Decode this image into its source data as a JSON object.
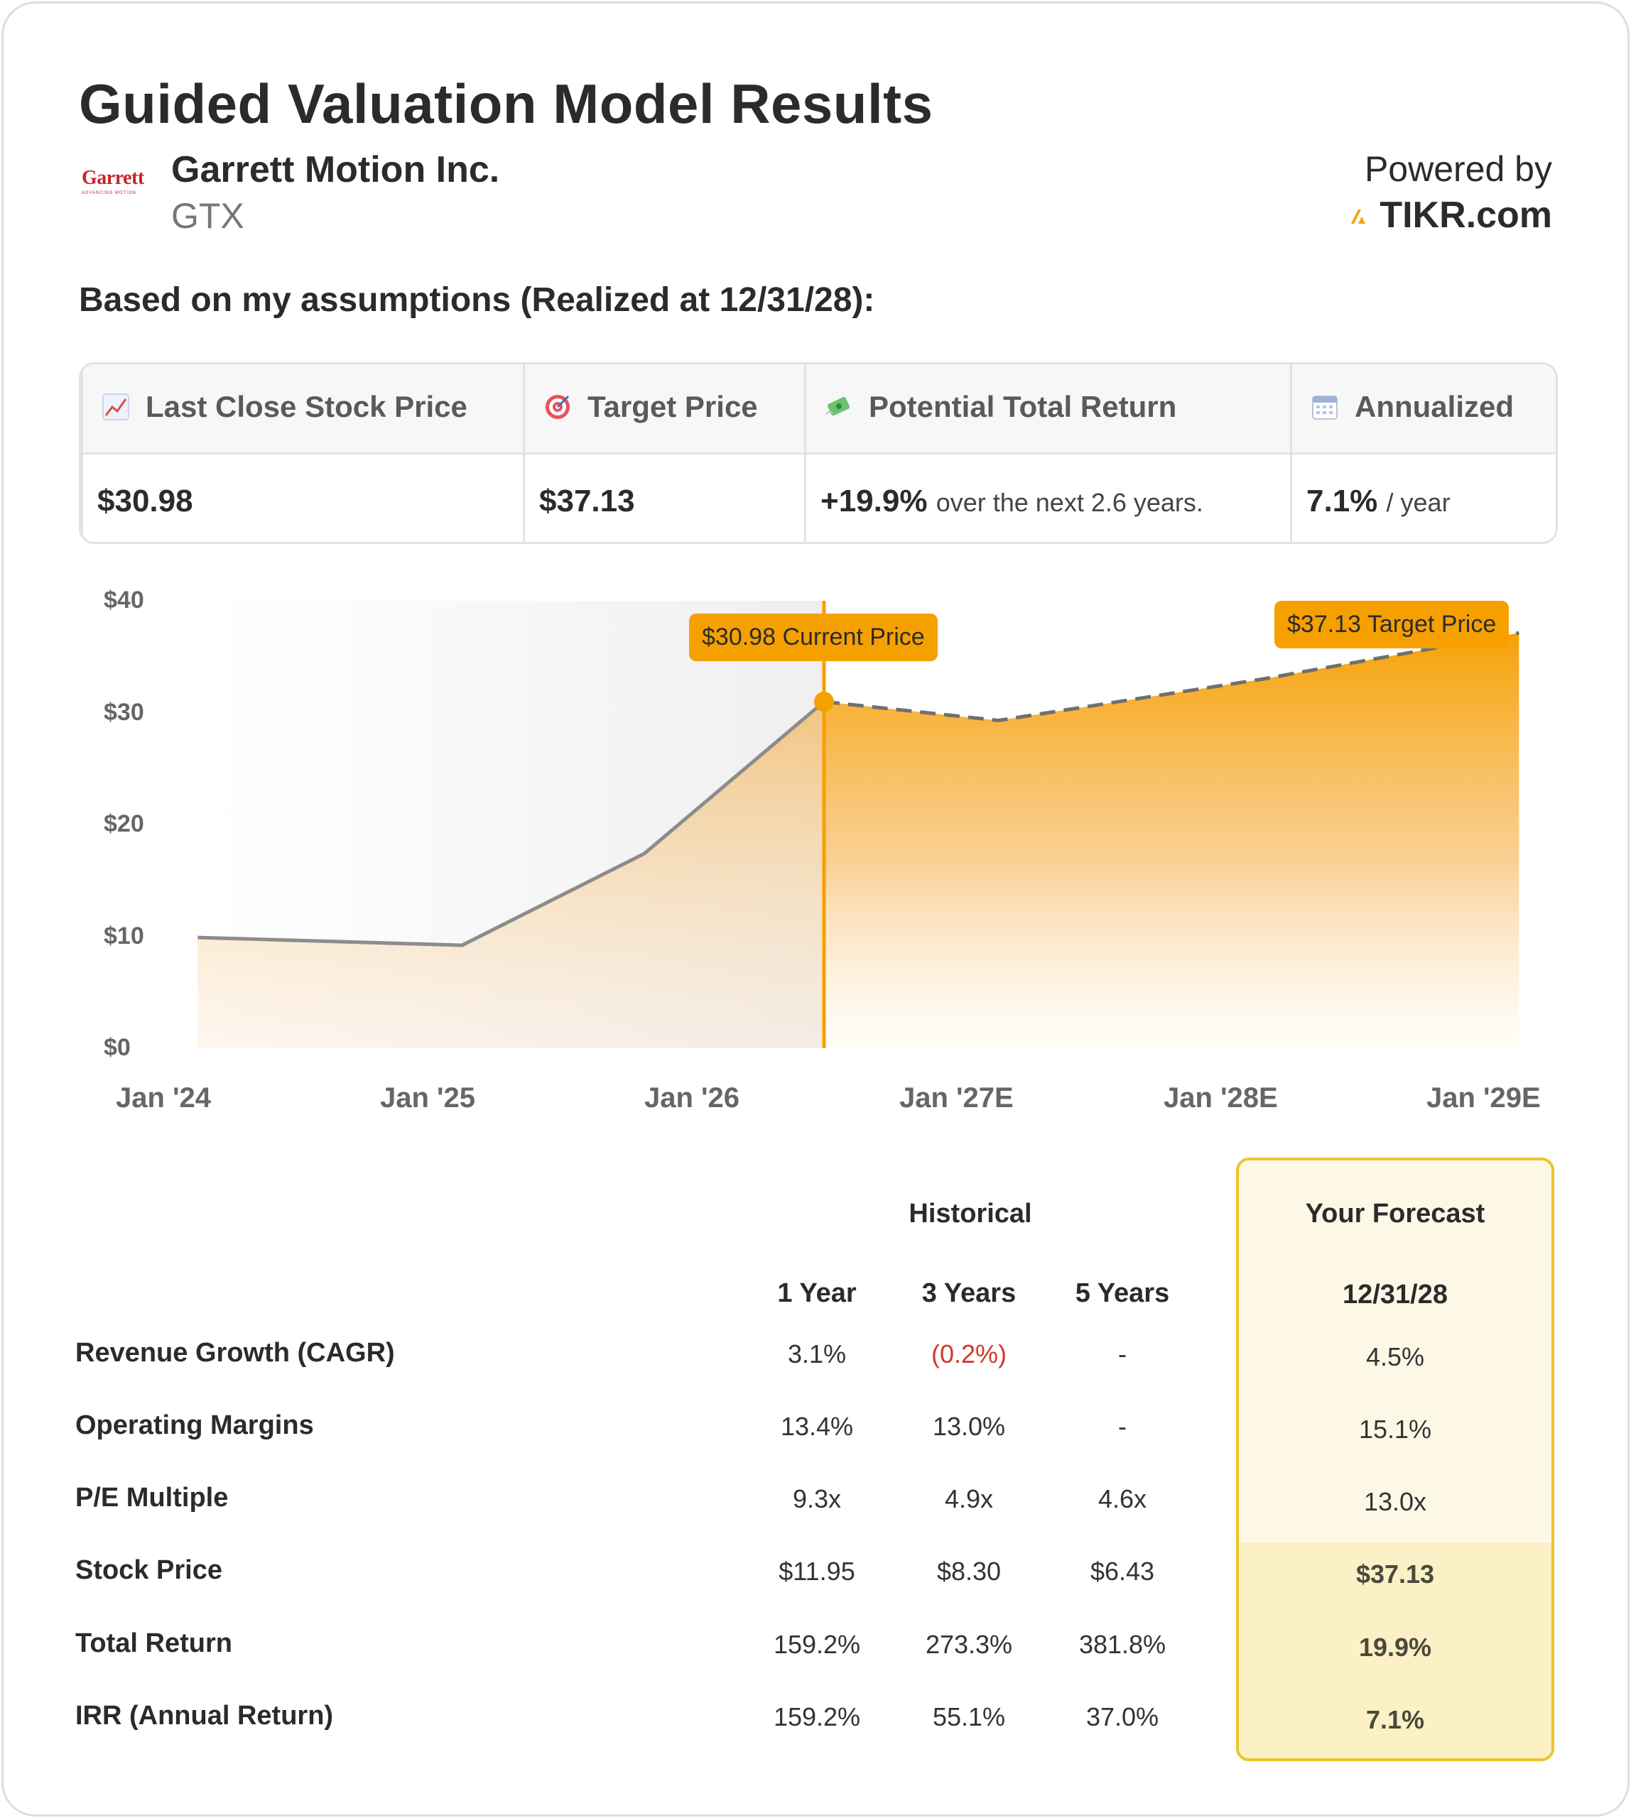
{
  "title": "Guided Valuation Model Results",
  "company": {
    "logo_text": "Garrett",
    "logo_subtext": "ADVANCING MOTION",
    "name": "Garrett Motion Inc.",
    "ticker": "GTX"
  },
  "powered_by": {
    "label": "Powered by",
    "brand": "TIKR.com"
  },
  "assumptions_heading": "Based on my assumptions (Realized at 12/31/28):",
  "summary": [
    {
      "icon": "chart-increasing-icon",
      "label": "Last Close Stock Price",
      "value": "$30.98",
      "sub": ""
    },
    {
      "icon": "target-icon",
      "label": "Target Price",
      "value": "$37.13",
      "sub": ""
    },
    {
      "icon": "money-flying-icon",
      "label": "Potential Total Return",
      "value": "+19.9%",
      "sub": "over the next 2.6 years."
    },
    {
      "icon": "calendar-icon",
      "label": "Annualized",
      "value": "7.1%",
      "sub": "/ year"
    }
  ],
  "chart_data": {
    "type": "area",
    "y_ticks": [
      "$40",
      "$30",
      "$20",
      "$10",
      "$0"
    ],
    "ylim": [
      0,
      40
    ],
    "x_ticks": [
      "Jan '24",
      "Jan '25",
      "Jan '26",
      "Jan '27E",
      "Jan '28E",
      "Jan '29E"
    ],
    "xlim": [
      2024.0,
      2029.0
    ],
    "historical": {
      "x": [
        2024.13,
        2025.13,
        2025.82,
        2026.5
      ],
      "y": [
        9.9,
        9.2,
        17.4,
        30.98
      ]
    },
    "forecast": {
      "x": [
        2026.5,
        2027.16,
        2028.16,
        2029.13
      ],
      "y": [
        30.98,
        29.3,
        33.0,
        37.13
      ]
    },
    "current_marker": {
      "x": 2026.5,
      "y": 30.98,
      "label": "$30.98 Current Price"
    },
    "target_marker": {
      "x": 2029.13,
      "y": 37.13,
      "label": "$37.13 Target Price"
    },
    "colors": {
      "accent": "#f6a000",
      "history_line": "#8c8c8c",
      "forecast_fill": "#f6a000"
    }
  },
  "table": {
    "group_historical": "Historical",
    "group_forecast": "Your Forecast",
    "columns": [
      "1 Year",
      "3 Years",
      "5 Years"
    ],
    "forecast_column": "12/31/28",
    "rows": [
      {
        "label": "Revenue Growth (CAGR)",
        "values": [
          "3.1%",
          "(0.2%)",
          "-"
        ],
        "forecast": "4.5%"
      },
      {
        "label": "Operating Margins",
        "values": [
          "13.4%",
          "13.0%",
          "-"
        ],
        "forecast": "15.1%"
      },
      {
        "label": "P/E Multiple",
        "values": [
          "9.3x",
          "4.9x",
          "4.6x"
        ],
        "forecast": "13.0x"
      },
      {
        "label": "Stock Price",
        "values": [
          "$11.95",
          "$8.30",
          "$6.43"
        ],
        "forecast": "$37.13"
      },
      {
        "label": "Total Return",
        "values": [
          "159.2%",
          "273.3%",
          "381.8%"
        ],
        "forecast": "19.9%"
      },
      {
        "label": "IRR (Annual Return)",
        "values": [
          "159.2%",
          "55.1%",
          "37.0%"
        ],
        "forecast": "7.1%"
      }
    ]
  }
}
